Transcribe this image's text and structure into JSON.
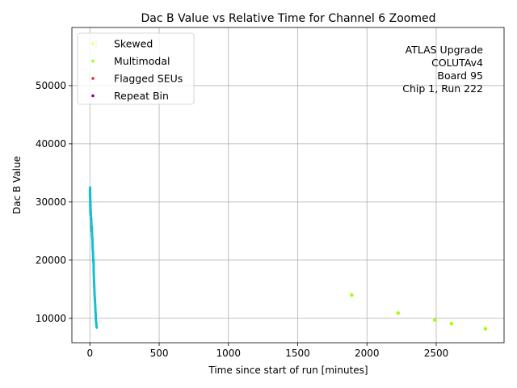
{
  "chart_data": {
    "type": "scatter",
    "title": "Dac B Value vs Relative Time for Channel 6 Zoomed",
    "xlabel": "Time since start of run [minutes]",
    "ylabel": "Dac B Value",
    "xlim": [
      -130,
      2990
    ],
    "ylim": [
      5800,
      60000
    ],
    "xticks": [
      0,
      500,
      1000,
      1500,
      2000,
      2500
    ],
    "yticks": [
      10000,
      20000,
      30000,
      40000,
      50000
    ],
    "xtick_labels": [
      "0",
      "500",
      "1000",
      "1500",
      "2000",
      "2500"
    ],
    "ytick_labels": [
      "10000",
      "20000",
      "30000",
      "40000",
      "50000"
    ],
    "grid": true,
    "legend_position": "upper-left",
    "annotation_lines": [
      "ATLAS Upgrade",
      "COLUTAv4",
      "Board 95",
      "Chip 1, Run 222"
    ],
    "series": [
      {
        "name": "Skewed",
        "color": "#ffff44",
        "marker": "dot",
        "x": [],
        "y": []
      },
      {
        "name": "Multimodal",
        "color": "#a0ff00",
        "marker": "dot",
        "x": [
          1890,
          2225,
          2490,
          2610,
          2855
        ],
        "y": [
          14000,
          10900,
          9700,
          9100,
          8200
        ]
      },
      {
        "name": "Flagged SEUs",
        "color": "#e8283c",
        "marker": "dot",
        "x": [],
        "y": []
      },
      {
        "name": "Repeat Bin",
        "color": "#800080",
        "marker": "dot",
        "x": [],
        "y": []
      },
      {
        "name": "",
        "color": "#17becf",
        "marker": "line",
        "x": [
          0,
          1,
          2,
          2,
          3,
          3,
          4,
          3,
          5,
          8,
          10,
          12,
          14,
          16,
          18,
          20,
          22,
          24,
          26,
          28,
          30,
          32,
          34,
          36,
          38,
          40,
          42,
          44,
          46,
          48,
          50
        ],
        "y": [
          31000,
          32500,
          31200,
          29500,
          30800,
          28200,
          27800,
          30500,
          29000,
          27000,
          27200,
          25000,
          25800,
          24000,
          23800,
          22000,
          21500,
          19800,
          20200,
          17500,
          16500,
          15200,
          14000,
          13200,
          12500,
          11200,
          10500,
          9500,
          9200,
          8500,
          8400
        ]
      },
      {
        "name": "",
        "color": "#cfe8ff",
        "marker": "line",
        "x": [
          47,
          48,
          49
        ],
        "y": [
          56500,
          57500,
          56800
        ]
      }
    ]
  }
}
